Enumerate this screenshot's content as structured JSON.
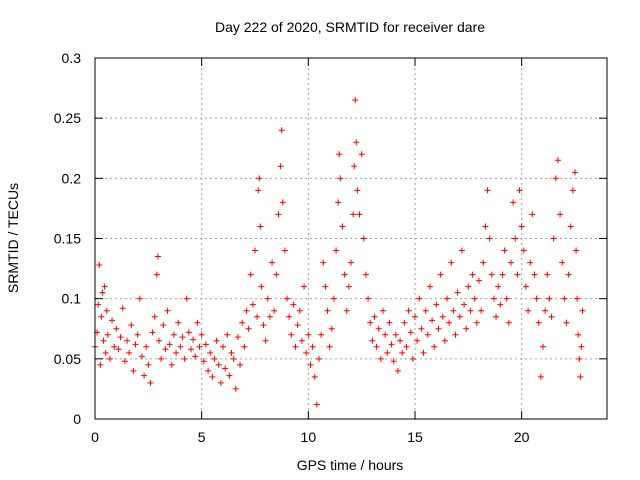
{
  "chart_data": {
    "type": "scatter",
    "title": "Day 222 of 2020, SRMTID for receiver dare",
    "xlabel": "GPS time / hours",
    "ylabel": "SRMTID / TECUs",
    "xlim": [
      0,
      24
    ],
    "ylim": [
      0,
      0.3
    ],
    "x_ticks": [
      0,
      5,
      10,
      15,
      20
    ],
    "x_tick_labels": [
      "0",
      "5",
      "10",
      "15",
      "20"
    ],
    "y_ticks": [
      0,
      0.05,
      0.1,
      0.15,
      0.2,
      0.25,
      0.3
    ],
    "y_tick_labels": [
      "0",
      "0.05",
      "0.1",
      "0.15",
      "0.2",
      "0.25",
      "0.3"
    ],
    "grid": true,
    "marker": "+",
    "color": "#ff0000",
    "series": [
      {
        "name": "SRMTID",
        "points": [
          [
            0.0,
            0.06
          ],
          [
            0.1,
            0.072
          ],
          [
            0.15,
            0.095
          ],
          [
            0.2,
            0.128
          ],
          [
            0.25,
            0.045
          ],
          [
            0.3,
            0.085
          ],
          [
            0.35,
            0.105
          ],
          [
            0.4,
            0.065
          ],
          [
            0.45,
            0.11
          ],
          [
            0.5,
            0.055
          ],
          [
            0.55,
            0.09
          ],
          [
            0.6,
            0.07
          ],
          [
            0.7,
            0.05
          ],
          [
            0.8,
            0.082
          ],
          [
            0.9,
            0.06
          ],
          [
            1.0,
            0.075
          ],
          [
            1.1,
            0.058
          ],
          [
            1.2,
            0.068
          ],
          [
            1.3,
            0.092
          ],
          [
            1.4,
            0.048
          ],
          [
            1.5,
            0.065
          ],
          [
            1.6,
            0.055
          ],
          [
            1.7,
            0.078
          ],
          [
            1.8,
            0.04
          ],
          [
            1.9,
            0.062
          ],
          [
            2.0,
            0.07
          ],
          [
            2.1,
            0.1
          ],
          [
            2.2,
            0.052
          ],
          [
            2.3,
            0.036
          ],
          [
            2.4,
            0.06
          ],
          [
            2.5,
            0.045
          ],
          [
            2.6,
            0.03
          ],
          [
            2.7,
            0.072
          ],
          [
            2.8,
            0.085
          ],
          [
            2.9,
            0.12
          ],
          [
            2.95,
            0.135
          ],
          [
            3.0,
            0.065
          ],
          [
            3.1,
            0.05
          ],
          [
            3.2,
            0.078
          ],
          [
            3.3,
            0.058
          ],
          [
            3.4,
            0.09
          ],
          [
            3.5,
            0.062
          ],
          [
            3.6,
            0.045
          ],
          [
            3.7,
            0.07
          ],
          [
            3.8,
            0.055
          ],
          [
            3.9,
            0.08
          ],
          [
            4.0,
            0.06
          ],
          [
            4.1,
            0.068
          ],
          [
            4.2,
            0.05
          ],
          [
            4.3,
            0.1
          ],
          [
            4.4,
            0.072
          ],
          [
            4.5,
            0.058
          ],
          [
            4.6,
            0.066
          ],
          [
            4.7,
            0.052
          ],
          [
            4.8,
            0.08
          ],
          [
            4.9,
            0.06
          ],
          [
            5.0,
            0.07
          ],
          [
            5.1,
            0.048
          ],
          [
            5.2,
            0.062
          ],
          [
            5.3,
            0.04
          ],
          [
            5.4,
            0.055
          ],
          [
            5.5,
            0.035
          ],
          [
            5.6,
            0.05
          ],
          [
            5.7,
            0.065
          ],
          [
            5.8,
            0.045
          ],
          [
            5.9,
            0.03
          ],
          [
            6.0,
            0.06
          ],
          [
            6.1,
            0.042
          ],
          [
            6.2,
            0.07
          ],
          [
            6.3,
            0.036
          ],
          [
            6.4,
            0.055
          ],
          [
            6.5,
            0.05
          ],
          [
            6.6,
            0.025
          ],
          [
            6.7,
            0.068
          ],
          [
            6.8,
            0.045
          ],
          [
            6.9,
            0.08
          ],
          [
            7.0,
            0.06
          ],
          [
            7.1,
            0.09
          ],
          [
            7.2,
            0.075
          ],
          [
            7.3,
            0.12
          ],
          [
            7.4,
            0.095
          ],
          [
            7.5,
            0.14
          ],
          [
            7.6,
            0.085
          ],
          [
            7.65,
            0.19
          ],
          [
            7.7,
            0.2
          ],
          [
            7.75,
            0.16
          ],
          [
            7.8,
            0.11
          ],
          [
            7.9,
            0.078
          ],
          [
            8.0,
            0.065
          ],
          [
            8.1,
            0.1
          ],
          [
            8.2,
            0.085
          ],
          [
            8.3,
            0.13
          ],
          [
            8.4,
            0.09
          ],
          [
            8.5,
            0.12
          ],
          [
            8.6,
            0.17
          ],
          [
            8.7,
            0.21
          ],
          [
            8.75,
            0.24
          ],
          [
            8.8,
            0.18
          ],
          [
            8.9,
            0.14
          ],
          [
            9.0,
            0.1
          ],
          [
            9.1,
            0.085
          ],
          [
            9.2,
            0.07
          ],
          [
            9.3,
            0.095
          ],
          [
            9.4,
            0.06
          ],
          [
            9.5,
            0.078
          ],
          [
            9.6,
            0.09
          ],
          [
            9.7,
            0.065
          ],
          [
            9.8,
            0.11
          ],
          [
            9.9,
            0.055
          ],
          [
            10.0,
            0.07
          ],
          [
            10.1,
            0.045
          ],
          [
            10.2,
            0.06
          ],
          [
            10.3,
            0.035
          ],
          [
            10.4,
            0.012
          ],
          [
            10.5,
            0.05
          ],
          [
            10.6,
            0.07
          ],
          [
            10.7,
            0.13
          ],
          [
            10.8,
            0.11
          ],
          [
            10.9,
            0.09
          ],
          [
            11.0,
            0.06
          ],
          [
            11.1,
            0.075
          ],
          [
            11.2,
            0.1
          ],
          [
            11.3,
            0.14
          ],
          [
            11.4,
            0.18
          ],
          [
            11.45,
            0.22
          ],
          [
            11.5,
            0.2
          ],
          [
            11.6,
            0.16
          ],
          [
            11.7,
            0.12
          ],
          [
            11.8,
            0.09
          ],
          [
            11.9,
            0.11
          ],
          [
            12.0,
            0.13
          ],
          [
            12.1,
            0.17
          ],
          [
            12.15,
            0.21
          ],
          [
            12.2,
            0.265
          ],
          [
            12.25,
            0.23
          ],
          [
            12.3,
            0.19
          ],
          [
            12.4,
            0.17
          ],
          [
            12.5,
            0.22
          ],
          [
            12.6,
            0.15
          ],
          [
            12.7,
            0.12
          ],
          [
            12.8,
            0.1
          ],
          [
            12.9,
            0.08
          ],
          [
            13.0,
            0.065
          ],
          [
            13.1,
            0.085
          ],
          [
            13.2,
            0.06
          ],
          [
            13.3,
            0.075
          ],
          [
            13.4,
            0.05
          ],
          [
            13.5,
            0.09
          ],
          [
            13.6,
            0.07
          ],
          [
            13.7,
            0.055
          ],
          [
            13.8,
            0.08
          ],
          [
            13.9,
            0.062
          ],
          [
            14.0,
            0.048
          ],
          [
            14.1,
            0.07
          ],
          [
            14.2,
            0.04
          ],
          [
            14.3,
            0.065
          ],
          [
            14.4,
            0.055
          ],
          [
            14.5,
            0.08
          ],
          [
            14.6,
            0.06
          ],
          [
            14.7,
            0.09
          ],
          [
            14.8,
            0.072
          ],
          [
            14.9,
            0.05
          ],
          [
            15.0,
            0.085
          ],
          [
            15.1,
            0.065
          ],
          [
            15.2,
            0.1
          ],
          [
            15.3,
            0.075
          ],
          [
            15.4,
            0.055
          ],
          [
            15.5,
            0.09
          ],
          [
            15.6,
            0.07
          ],
          [
            15.7,
            0.11
          ],
          [
            15.8,
            0.082
          ],
          [
            15.9,
            0.06
          ],
          [
            16.0,
            0.095
          ],
          [
            16.1,
            0.075
          ],
          [
            16.2,
            0.12
          ],
          [
            16.3,
            0.085
          ],
          [
            16.4,
            0.065
          ],
          [
            16.5,
            0.1
          ],
          [
            16.6,
            0.08
          ],
          [
            16.7,
            0.13
          ],
          [
            16.8,
            0.09
          ],
          [
            16.9,
            0.07
          ],
          [
            17.0,
            0.105
          ],
          [
            17.1,
            0.085
          ],
          [
            17.2,
            0.14
          ],
          [
            17.3,
            0.095
          ],
          [
            17.4,
            0.075
          ],
          [
            17.5,
            0.11
          ],
          [
            17.6,
            0.09
          ],
          [
            17.7,
            0.12
          ],
          [
            17.8,
            0.1
          ],
          [
            17.9,
            0.08
          ],
          [
            18.0,
            0.115
          ],
          [
            18.1,
            0.09
          ],
          [
            18.2,
            0.13
          ],
          [
            18.3,
            0.16
          ],
          [
            18.4,
            0.19
          ],
          [
            18.5,
            0.15
          ],
          [
            18.6,
            0.12
          ],
          [
            18.7,
            0.1
          ],
          [
            18.8,
            0.085
          ],
          [
            18.9,
            0.11
          ],
          [
            19.0,
            0.095
          ],
          [
            19.1,
            0.12
          ],
          [
            19.2,
            0.14
          ],
          [
            19.3,
            0.1
          ],
          [
            19.4,
            0.08
          ],
          [
            19.5,
            0.13
          ],
          [
            19.6,
            0.18
          ],
          [
            19.7,
            0.15
          ],
          [
            19.8,
            0.12
          ],
          [
            19.9,
            0.19
          ],
          [
            20.0,
            0.16
          ],
          [
            20.1,
            0.14
          ],
          [
            20.2,
            0.11
          ],
          [
            20.3,
            0.09
          ],
          [
            20.4,
            0.13
          ],
          [
            20.5,
            0.17
          ],
          [
            20.6,
            0.12
          ],
          [
            20.7,
            0.1
          ],
          [
            20.8,
            0.08
          ],
          [
            20.9,
            0.035
          ],
          [
            21.0,
            0.06
          ],
          [
            21.1,
            0.09
          ],
          [
            21.2,
            0.12
          ],
          [
            21.3,
            0.1
          ],
          [
            21.4,
            0.085
          ],
          [
            21.5,
            0.15
          ],
          [
            21.6,
            0.2
          ],
          [
            21.7,
            0.215
          ],
          [
            21.8,
            0.17
          ],
          [
            21.9,
            0.13
          ],
          [
            22.0,
            0.1
          ],
          [
            22.1,
            0.08
          ],
          [
            22.2,
            0.12
          ],
          [
            22.3,
            0.16
          ],
          [
            22.4,
            0.19
          ],
          [
            22.5,
            0.205
          ],
          [
            22.55,
            0.14
          ],
          [
            22.6,
            0.1
          ],
          [
            22.65,
            0.07
          ],
          [
            22.7,
            0.05
          ],
          [
            22.75,
            0.035
          ],
          [
            22.8,
            0.06
          ],
          [
            22.85,
            0.09
          ]
        ]
      }
    ]
  }
}
